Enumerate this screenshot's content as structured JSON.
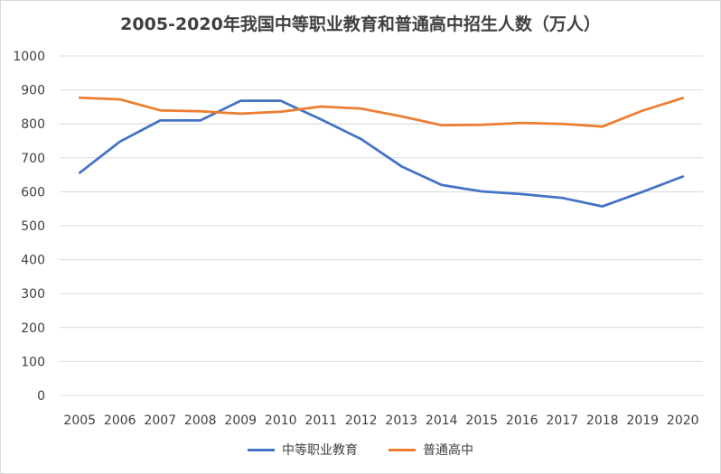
{
  "chart_data": {
    "type": "line",
    "title": "2005-2020年我国中等职业教育和普通高中招生人数（万人）",
    "xlabel": "",
    "ylabel": "",
    "x": [
      "2005",
      "2006",
      "2007",
      "2008",
      "2009",
      "2010",
      "2011",
      "2012",
      "2013",
      "2014",
      "2015",
      "2016",
      "2017",
      "2018",
      "2019",
      "2020"
    ],
    "ylim": [
      0,
      1000
    ],
    "yticks": [
      "0",
      "100",
      "200",
      "300",
      "400",
      "500",
      "600",
      "700",
      "800",
      "900",
      "1000"
    ],
    "grid": true,
    "legend_position": "bottom",
    "series": [
      {
        "name": "中等职业教育",
        "color": "#4472c4",
        "values": [
          656,
          748,
          810,
          810,
          868,
          868,
          813,
          755,
          675,
          620,
          601,
          593,
          582,
          557,
          600,
          645
        ]
      },
      {
        "name": "普通高中",
        "color": "#ed7d31",
        "values": [
          877,
          872,
          840,
          837,
          830,
          836,
          851,
          845,
          822,
          796,
          797,
          803,
          800,
          792,
          839,
          876
        ]
      }
    ]
  }
}
